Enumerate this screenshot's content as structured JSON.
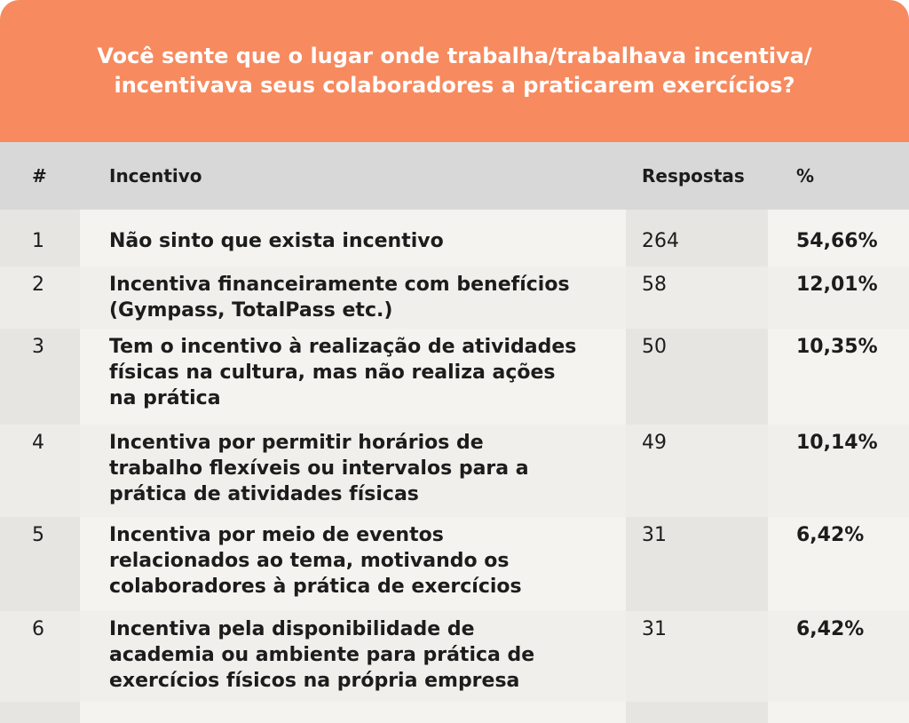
{
  "header": {
    "title": [
      "Você sente que o lugar onde trabalha/trabalhava incentiva/",
      "incentivava seus colaboradores a praticarem exercícios?"
    ]
  },
  "table": {
    "columns": [
      "#",
      "Incentivo",
      "Respostas",
      "%"
    ],
    "rows": [
      [
        1,
        [
          "Não sinto que exista incentivo"
        ],
        264,
        "54,66%"
      ],
      [
        2,
        [
          "Incentiva financeiramente com benefícios",
          "(Gympass, TotalPass etc.)"
        ],
        58,
        "12,01%"
      ],
      [
        3,
        [
          "Tem o incentivo à realização de atividades",
          "físicas na cultura, mas não realiza ações",
          "na prática"
        ],
        50,
        "10,35%"
      ],
      [
        4,
        [
          "Incentiva por permitir horários de",
          "trabalho flexíveis ou intervalos para a",
          "prática de atividades físicas"
        ],
        49,
        "10,14%"
      ],
      [
        5,
        [
          "Incentiva por meio de eventos",
          "relacionados ao tema, motivando os",
          "colaboradores à prática de exercícios"
        ],
        31,
        "6,42%"
      ],
      [
        6,
        [
          "Incentiva pela disponibilidade de",
          "academia ou ambiente para prática de",
          "exercícios físicos na própria empresa"
        ],
        31,
        "6,42%"
      ]
    ]
  }
}
